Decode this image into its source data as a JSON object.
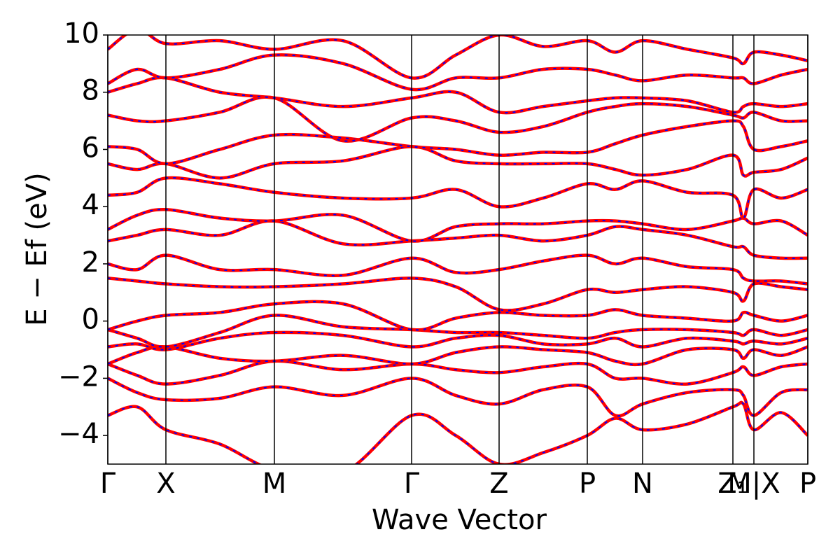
{
  "chart_data": {
    "type": "line",
    "x_label": "Wave Vector",
    "y_label": "E − Ef (eV)",
    "xlim": [
      0,
      1000
    ],
    "ylim": [
      -5,
      10
    ],
    "xticks": [
      {
        "value": 0,
        "label": "Γ"
      },
      {
        "value": 83,
        "label": "X"
      },
      {
        "value": 238,
        "label": "M"
      },
      {
        "value": 434,
        "label": "Γ"
      },
      {
        "value": 559,
        "label": "Z"
      },
      {
        "value": 685,
        "label": "P"
      },
      {
        "value": 764,
        "label": "N"
      },
      {
        "value": 893,
        "label": "Z₁"
      },
      {
        "value": 923,
        "label": "M|X"
      },
      {
        "value": 1000,
        "label": "P"
      }
    ],
    "yticks": [
      {
        "value": -4,
        "label": "−4"
      },
      {
        "value": -2,
        "label": "−2"
      },
      0,
      2,
      4,
      6,
      8,
      10
    ],
    "line_color": "#ff0000",
    "dash_color": "#0000ff",
    "x": [
      0,
      42,
      83,
      160,
      238,
      336,
      434,
      497,
      559,
      622,
      685,
      725,
      764,
      828,
      893,
      908,
      923,
      962,
      1000
    ],
    "series": [
      {
        "values": [
          -3.3,
          -3.0,
          -3.8,
          -4.3,
          -5.2,
          -5.3,
          -3.3,
          -4.0,
          -5.0,
          -4.6,
          -4.0,
          -3.4,
          -3.8,
          -3.6,
          -3.0,
          -2.9,
          -3.8,
          -3.2,
          -4.0
        ]
      },
      {
        "values": [
          -2.0,
          -2.5,
          -2.75,
          -2.7,
          -2.3,
          -2.6,
          -2.0,
          -2.6,
          -2.9,
          -2.4,
          -2.3,
          -3.3,
          -2.9,
          -2.5,
          -2.4,
          -2.6,
          -3.3,
          -2.5,
          -2.4
        ]
      },
      {
        "values": [
          -1.5,
          -1.9,
          -2.2,
          -1.9,
          -1.4,
          -1.7,
          -1.5,
          -1.7,
          -1.8,
          -1.6,
          -1.5,
          -2.0,
          -2.0,
          -2.2,
          -1.8,
          -1.6,
          -1.9,
          -1.6,
          -1.5
        ]
      },
      {
        "values": [
          -1.5,
          -1.1,
          -0.9,
          -1.3,
          -1.4,
          -1.2,
          -1.5,
          -1.1,
          -0.9,
          -1.0,
          -1.1,
          -1.4,
          -1.5,
          -1.0,
          -1.0,
          -1.3,
          -1.0,
          -1.2,
          -0.9
        ]
      },
      {
        "values": [
          -0.9,
          -0.8,
          -1.0,
          -0.6,
          -0.4,
          -0.5,
          -0.9,
          -0.6,
          -0.5,
          -0.8,
          -0.8,
          -0.6,
          -0.9,
          -0.6,
          -0.7,
          -0.8,
          -0.7,
          -0.8,
          -0.6
        ]
      },
      {
        "values": [
          -0.3,
          -0.6,
          -0.9,
          -0.4,
          0.2,
          -0.2,
          -0.3,
          -0.4,
          -0.4,
          -0.5,
          -0.6,
          -0.4,
          -0.3,
          -0.3,
          -0.4,
          -0.5,
          -0.3,
          -0.5,
          -0.3
        ]
      },
      {
        "values": [
          -0.3,
          0.0,
          0.2,
          0.3,
          0.6,
          0.6,
          -0.3,
          0.1,
          0.3,
          0.2,
          0.2,
          0.4,
          0.2,
          0.1,
          0.0,
          0.3,
          0.2,
          0.0,
          0.2
        ]
      },
      {
        "values": [
          1.5,
          1.4,
          1.3,
          1.2,
          1.2,
          1.3,
          1.5,
          1.2,
          0.4,
          0.6,
          1.1,
          1.0,
          1.1,
          1.2,
          1.0,
          0.7,
          1.3,
          1.2,
          1.1
        ]
      },
      {
        "values": [
          2.0,
          1.8,
          2.3,
          1.8,
          1.8,
          1.6,
          2.2,
          1.7,
          1.8,
          2.1,
          2.3,
          2.0,
          2.2,
          1.9,
          1.8,
          1.5,
          1.4,
          1.4,
          1.3
        ]
      },
      {
        "values": [
          2.8,
          3.0,
          3.2,
          3.0,
          3.5,
          2.7,
          2.8,
          2.9,
          3.0,
          2.8,
          3.0,
          3.3,
          3.2,
          3.0,
          2.6,
          2.6,
          2.3,
          2.2,
          2.2
        ]
      },
      {
        "values": [
          3.2,
          3.7,
          3.9,
          3.6,
          3.5,
          3.7,
          2.8,
          3.3,
          3.4,
          3.4,
          3.5,
          3.5,
          3.4,
          3.2,
          3.5,
          3.6,
          3.4,
          3.5,
          3.0
        ]
      },
      {
        "values": [
          4.4,
          4.5,
          5.0,
          4.8,
          4.5,
          4.3,
          4.3,
          4.6,
          4.0,
          4.3,
          4.8,
          4.6,
          4.9,
          4.5,
          4.4,
          3.6,
          4.6,
          4.3,
          4.6
        ]
      },
      {
        "values": [
          5.5,
          5.3,
          5.5,
          5.0,
          5.5,
          5.6,
          6.1,
          5.6,
          5.5,
          5.5,
          5.5,
          5.3,
          5.1,
          5.3,
          5.8,
          5.1,
          5.2,
          5.3,
          5.7
        ]
      },
      {
        "values": [
          6.1,
          6.0,
          5.5,
          6.0,
          6.5,
          6.4,
          6.1,
          6.0,
          5.8,
          5.9,
          5.9,
          6.2,
          6.5,
          6.8,
          7.0,
          6.8,
          6.0,
          6.1,
          6.3
        ]
      },
      {
        "values": [
          7.2,
          7.0,
          7.0,
          7.3,
          7.8,
          6.3,
          7.1,
          7.0,
          6.6,
          6.8,
          7.3,
          7.5,
          7.6,
          7.5,
          7.2,
          7.1,
          7.3,
          7.0,
          7.0
        ]
      },
      {
        "values": [
          8.0,
          8.3,
          8.5,
          8.0,
          7.8,
          7.5,
          7.8,
          8.0,
          7.3,
          7.5,
          7.7,
          7.8,
          7.8,
          7.7,
          7.3,
          7.5,
          7.6,
          7.5,
          7.6
        ]
      },
      {
        "values": [
          8.3,
          8.8,
          8.5,
          8.8,
          9.3,
          9.0,
          8.1,
          8.5,
          8.5,
          8.8,
          8.8,
          8.6,
          8.4,
          8.6,
          8.5,
          8.5,
          8.3,
          8.6,
          8.8
        ]
      },
      {
        "values": [
          9.5,
          10.2,
          9.7,
          9.8,
          9.5,
          9.8,
          8.5,
          9.3,
          10.0,
          9.6,
          9.8,
          9.4,
          9.8,
          9.5,
          9.2,
          9.0,
          9.4,
          9.3,
          9.1
        ]
      }
    ]
  }
}
